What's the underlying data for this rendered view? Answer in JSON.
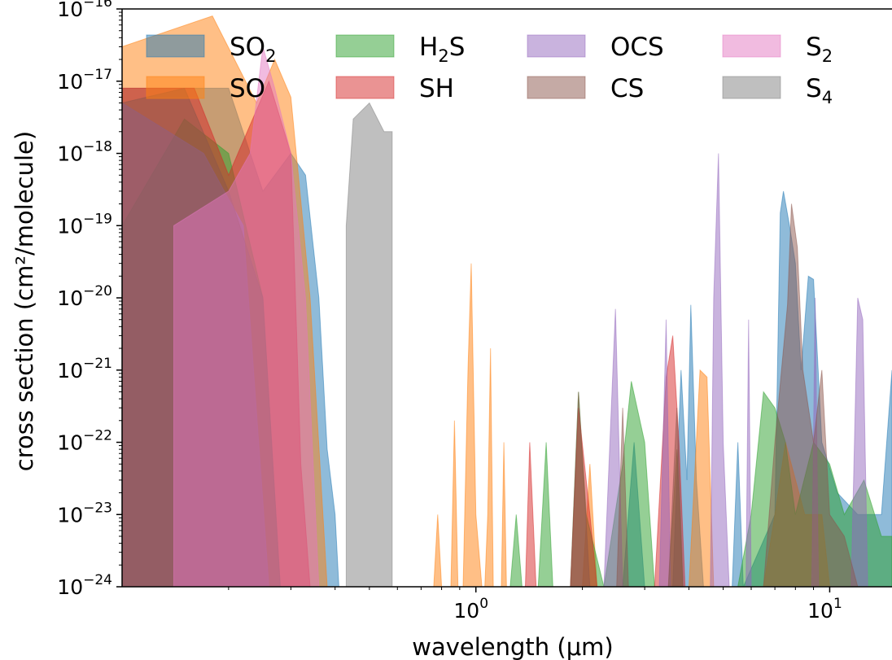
{
  "chart_data": {
    "type": "area",
    "xlabel": "wavelength (μm)",
    "ylabel": "cross section (cm²/molecule)",
    "xscale": "log",
    "yscale": "log",
    "xlim": [
      0.1,
      15
    ],
    "ylim": [
      1e-24,
      1e-16
    ],
    "grid": false,
    "legend_position": "top",
    "legend_columns": 4,
    "x_ticks": [
      {
        "value": 1,
        "base": "10",
        "exp": "0"
      },
      {
        "value": 10,
        "base": "10",
        "exp": "1"
      }
    ],
    "y_ticks": [
      {
        "value": 1e-16,
        "base": "10",
        "exp": "−16"
      },
      {
        "value": 1e-17,
        "base": "10",
        "exp": "−17"
      },
      {
        "value": 1e-18,
        "base": "10",
        "exp": "−18"
      },
      {
        "value": 1e-19,
        "base": "10",
        "exp": "−19"
      },
      {
        "value": 1e-20,
        "base": "10",
        "exp": "−20"
      },
      {
        "value": 1e-21,
        "base": "10",
        "exp": "−21"
      },
      {
        "value": 1e-22,
        "base": "10",
        "exp": "−22"
      },
      {
        "value": 1e-23,
        "base": "10",
        "exp": "−23"
      },
      {
        "value": 1e-24,
        "base": "10",
        "exp": "−24"
      }
    ],
    "series": [
      {
        "name": "SO2",
        "label_main": "SO",
        "label_sub": "2",
        "color": "#1f77b4",
        "points": [
          [
            0.1,
            8e-18
          ],
          [
            0.2,
            8e-18
          ],
          [
            0.25,
            3e-19
          ],
          [
            0.3,
            1e-18
          ],
          [
            0.33,
            5e-19
          ],
          [
            0.36,
            1e-20
          ],
          [
            0.38,
            8e-23
          ],
          [
            0.4,
            1e-23
          ],
          [
            0.41,
            1e-24
          ],
          [
            2.6,
            1e-24
          ],
          [
            2.8,
            1e-22
          ],
          [
            3.0,
            1e-24
          ],
          [
            3.6,
            1e-24
          ],
          [
            3.8,
            1e-21
          ],
          [
            3.95,
            3e-23
          ],
          [
            4.05,
            8e-21
          ],
          [
            4.2,
            3e-23
          ],
          [
            4.4,
            1e-24
          ],
          [
            5.3,
            1e-24
          ],
          [
            5.5,
            1e-22
          ],
          [
            5.7,
            1e-24
          ],
          [
            7.0,
            1e-23
          ],
          [
            7.25,
            1.5e-19
          ],
          [
            7.4,
            3e-19
          ],
          [
            7.7,
            1e-19
          ],
          [
            8.0,
            3e-20
          ],
          [
            8.3,
            1e-21
          ],
          [
            8.7,
            2e-20
          ],
          [
            9.0,
            1.8e-20
          ],
          [
            9.5,
            1e-22
          ],
          [
            10.5,
            2e-23
          ],
          [
            12.0,
            1e-23
          ],
          [
            14.0,
            1e-23
          ],
          [
            15.0,
            1e-21
          ]
        ]
      },
      {
        "name": "SO",
        "label_main": "SO",
        "label_sub": "",
        "color": "#ff7f0e",
        "points": [
          [
            0.1,
            3e-17
          ],
          [
            0.18,
            8e-17
          ],
          [
            0.24,
            5e-18
          ],
          [
            0.27,
            2e-17
          ],
          [
            0.3,
            6e-18
          ],
          [
            0.34,
            1e-20
          ],
          [
            0.38,
            1e-24
          ],
          [
            0.76,
            1e-24
          ],
          [
            0.78,
            1e-23
          ],
          [
            0.8,
            1e-24
          ],
          [
            0.85,
            1e-24
          ],
          [
            0.87,
            2e-22
          ],
          [
            0.89,
            1e-24
          ],
          [
            0.92,
            1e-24
          ],
          [
            0.95,
            1e-21
          ],
          [
            0.97,
            3e-20
          ],
          [
            1.0,
            1e-23
          ],
          [
            1.04,
            1e-24
          ],
          [
            1.06,
            1e-24
          ],
          [
            1.08,
            1e-23
          ],
          [
            1.1,
            2e-21
          ],
          [
            1.12,
            1e-24
          ],
          [
            1.18,
            1e-24
          ],
          [
            1.2,
            1e-22
          ],
          [
            1.22,
            1e-24
          ],
          [
            2.0,
            1e-24
          ],
          [
            2.1,
            5e-23
          ],
          [
            2.2,
            1e-24
          ],
          [
            4.0,
            1e-24
          ],
          [
            4.3,
            1e-21
          ],
          [
            4.5,
            8e-22
          ],
          [
            4.7,
            1e-24
          ],
          [
            6.5,
            1e-24
          ],
          [
            7.0,
            1e-23
          ],
          [
            7.5,
            1e-22
          ],
          [
            8.5,
            1e-23
          ],
          [
            9.5,
            1e-23
          ],
          [
            10.0,
            1e-24
          ]
        ]
      },
      {
        "name": "H2S",
        "label_main": "H",
        "label_sub": "2",
        "label_tail": "S",
        "color": "#2ca02c",
        "points": [
          [
            0.1,
            1e-19
          ],
          [
            0.15,
            3e-18
          ],
          [
            0.2,
            1e-18
          ],
          [
            0.25,
            1e-20
          ],
          [
            0.28,
            1e-24
          ],
          [
            1.25,
            1e-24
          ],
          [
            1.3,
            1e-23
          ],
          [
            1.35,
            1e-24
          ],
          [
            1.5,
            1e-24
          ],
          [
            1.58,
            1e-22
          ],
          [
            1.65,
            1e-24
          ],
          [
            1.85,
            1e-24
          ],
          [
            1.95,
            5e-22
          ],
          [
            2.05,
            1e-23
          ],
          [
            2.3,
            1e-24
          ],
          [
            2.6,
            5e-23
          ],
          [
            2.75,
            7e-22
          ],
          [
            3.0,
            1e-22
          ],
          [
            3.2,
            1e-24
          ],
          [
            3.5,
            1e-24
          ],
          [
            3.7,
            8e-23
          ],
          [
            3.85,
            1e-24
          ],
          [
            5.5,
            1e-24
          ],
          [
            6.0,
            1e-23
          ],
          [
            6.5,
            5e-22
          ],
          [
            7.0,
            3e-22
          ],
          [
            7.5,
            1e-22
          ],
          [
            8.0,
            1e-23
          ],
          [
            9.0,
            1e-22
          ],
          [
            10.0,
            5e-23
          ],
          [
            11.0,
            1e-23
          ],
          [
            12.5,
            3e-23
          ],
          [
            14.0,
            5e-24
          ],
          [
            15.0,
            5e-24
          ]
        ]
      },
      {
        "name": "SH",
        "label_main": "SH",
        "label_sub": "",
        "color": "#d62728",
        "points": [
          [
            0.1,
            8e-18
          ],
          [
            0.16,
            8e-18
          ],
          [
            0.2,
            5e-19
          ],
          [
            0.26,
            1e-17
          ],
          [
            0.3,
            1e-18
          ],
          [
            0.32,
            5e-23
          ],
          [
            0.34,
            1e-24
          ],
          [
            1.38,
            1e-24
          ],
          [
            1.42,
            1e-22
          ],
          [
            1.48,
            1e-24
          ],
          [
            1.85,
            1e-24
          ],
          [
            1.95,
            3e-22
          ],
          [
            2.1,
            1e-23
          ],
          [
            2.2,
            1e-24
          ],
          [
            3.2,
            1e-24
          ],
          [
            3.45,
            8e-22
          ],
          [
            3.6,
            3e-21
          ],
          [
            3.75,
            1e-22
          ],
          [
            3.9,
            1e-24
          ]
        ]
      },
      {
        "name": "OCS",
        "label_main": "OCS",
        "label_sub": "",
        "color": "#9467bd",
        "points": [
          [
            0.1,
            5e-18
          ],
          [
            0.17,
            1e-18
          ],
          [
            0.22,
            1e-19
          ],
          [
            0.26,
            1e-24
          ],
          [
            2.3,
            1e-24
          ],
          [
            2.48,
            7e-21
          ],
          [
            2.6,
            1e-24
          ],
          [
            3.3,
            1e-24
          ],
          [
            3.45,
            5e-21
          ],
          [
            3.55,
            1e-24
          ],
          [
            4.6,
            1e-24
          ],
          [
            4.7,
            1e-20
          ],
          [
            4.85,
            1e-18
          ],
          [
            5.0,
            1e-22
          ],
          [
            5.2,
            1e-24
          ],
          [
            5.8,
            1e-24
          ],
          [
            5.9,
            5e-21
          ],
          [
            6.0,
            1e-24
          ],
          [
            8.9,
            1e-24
          ],
          [
            9.1,
            1e-20
          ],
          [
            9.3,
            1e-24
          ],
          [
            11.5,
            1e-24
          ],
          [
            12.0,
            1e-20
          ],
          [
            12.4,
            5e-21
          ],
          [
            12.8,
            1e-24
          ]
        ]
      },
      {
        "name": "CS",
        "label_main": "CS",
        "label_sub": "",
        "color": "#8c564b",
        "points": [
          [
            0.1,
            5e-18
          ],
          [
            0.15,
            8e-18
          ],
          [
            0.2,
            3e-19
          ],
          [
            0.25,
            1e-20
          ],
          [
            0.28,
            1e-24
          ],
          [
            1.85,
            1e-24
          ],
          [
            1.95,
            5e-22
          ],
          [
            2.1,
            1e-24
          ],
          [
            2.5,
            1e-24
          ],
          [
            2.6,
            3e-22
          ],
          [
            2.7,
            1e-24
          ],
          [
            3.5,
            1e-24
          ],
          [
            3.7,
            3e-22
          ],
          [
            3.85,
            1e-24
          ],
          [
            6.5,
            1e-24
          ],
          [
            7.0,
            1e-22
          ],
          [
            7.6,
            8e-21
          ],
          [
            7.8,
            2e-19
          ],
          [
            8.1,
            5e-20
          ],
          [
            8.4,
            1e-21
          ],
          [
            9.0,
            1e-22
          ],
          [
            9.5,
            1e-21
          ],
          [
            10.0,
            1e-23
          ],
          [
            11.0,
            5e-24
          ],
          [
            12.0,
            1e-24
          ]
        ]
      },
      {
        "name": "S2",
        "label_main": "S",
        "label_sub": "2",
        "color": "#e377c2",
        "points": [
          [
            0.14,
            1e-24
          ],
          [
            0.14,
            1e-19
          ],
          [
            0.2,
            3e-19
          ],
          [
            0.23,
            1e-18
          ],
          [
            0.25,
            3e-17
          ],
          [
            0.27,
            8e-18
          ],
          [
            0.3,
            1e-18
          ],
          [
            0.33,
            1e-20
          ],
          [
            0.36,
            1e-24
          ]
        ]
      },
      {
        "name": "S4",
        "label_main": "S",
        "label_sub": "4",
        "color": "#7f7f7f",
        "points": [
          [
            0.43,
            1e-24
          ],
          [
            0.43,
            1e-19
          ],
          [
            0.45,
            3e-18
          ],
          [
            0.5,
            5e-18
          ],
          [
            0.55,
            2e-18
          ],
          [
            0.58,
            2e-18
          ],
          [
            0.58,
            1e-24
          ]
        ]
      }
    ]
  }
}
